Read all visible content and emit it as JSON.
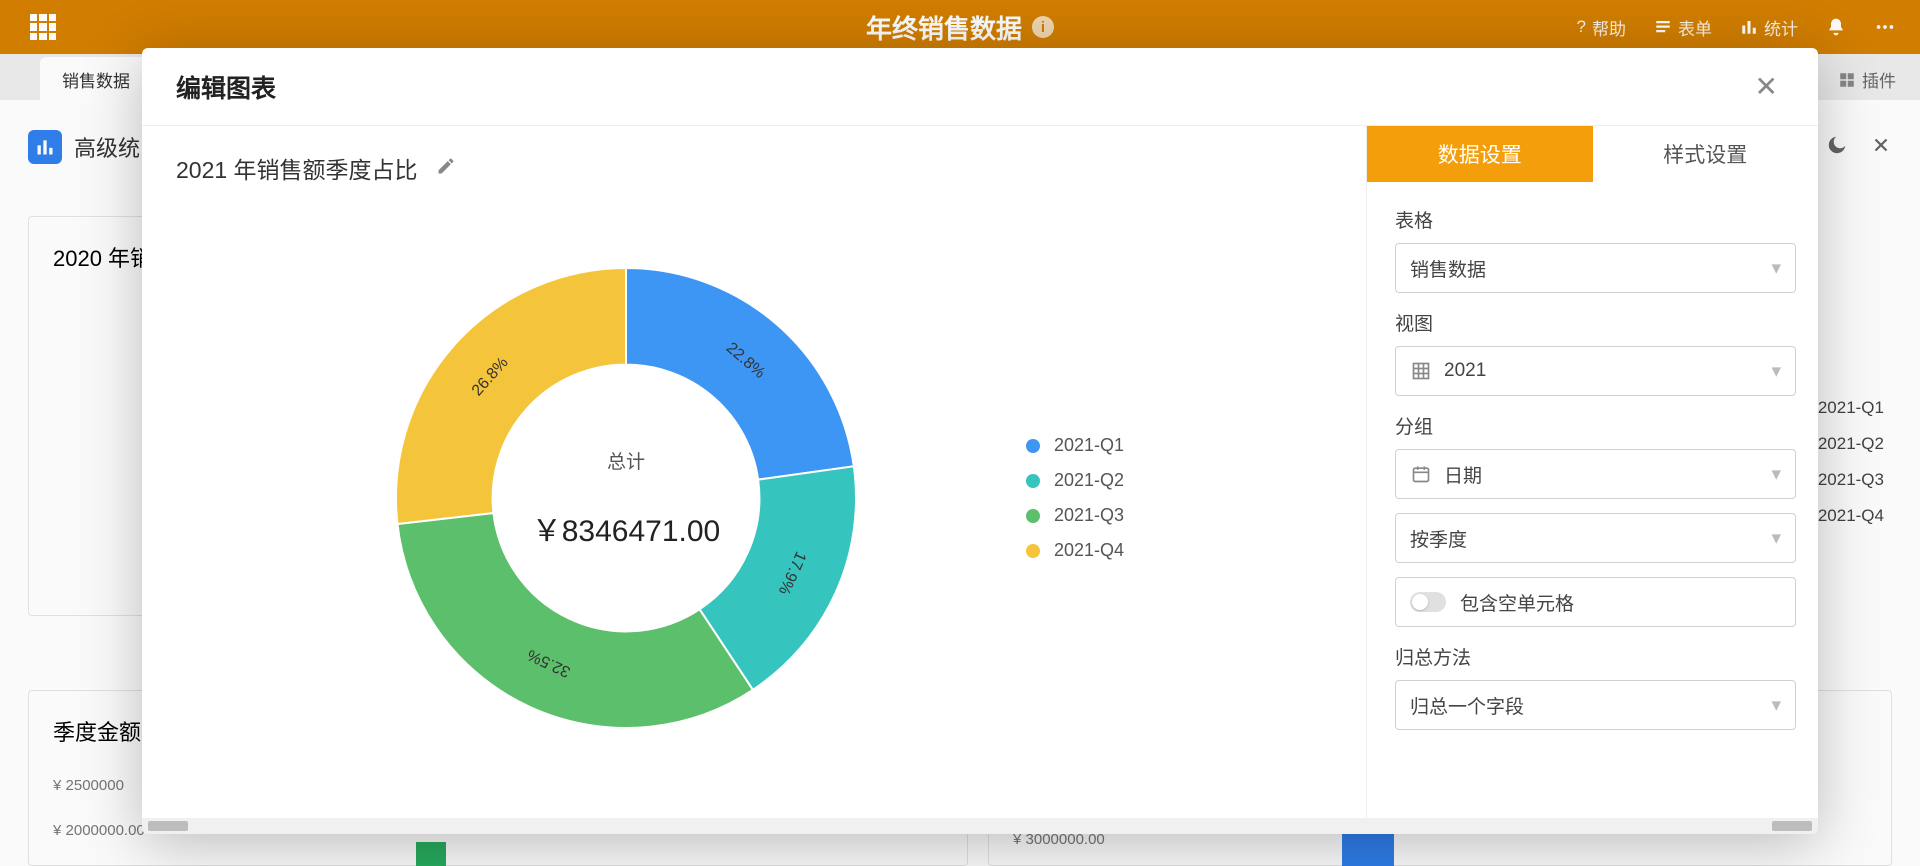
{
  "app": {
    "title": "年终销售数据",
    "help_label": "帮助",
    "forms_label": "表单",
    "stats_label": "统计",
    "plugins_label": "插件",
    "sheet_tab": "销售数据",
    "adv_stats": "高级统",
    "bg_card_2020": "2020 年销",
    "bg_card_quarter": "季度金额",
    "bg_right_rows": [
      "2021-Q1",
      "2021-Q2",
      "2021-Q3",
      "2021-Q4"
    ],
    "bg_y_left": [
      "¥ 2500000",
      "¥ 2000000.00"
    ],
    "bg_y_right": "¥ 3000000.00"
  },
  "modal": {
    "title": "编辑图表",
    "chart_title": "2021 年销售额季度占比",
    "center_label": "总计",
    "center_value": "￥8346471.00",
    "donut": {
      "type": "donut",
      "inner_ratio": 0.58,
      "background_color": "#ffffff",
      "label_fontsize": 16,
      "label_color": "#333333",
      "slices": [
        {
          "name": "2021-Q1",
          "percent": 22.8,
          "color": "#3e96f4"
        },
        {
          "name": "2021-Q2",
          "percent": 17.9,
          "color": "#35c4be"
        },
        {
          "name": "2021-Q3",
          "percent": 32.5,
          "color": "#5bbf6b"
        },
        {
          "name": "2021-Q4",
          "percent": 26.8,
          "color": "#f4c53a"
        }
      ]
    },
    "settings": {
      "tab_data": "数据设置",
      "tab_style": "样式设置",
      "section_table": "表格",
      "sel_table": "销售数据",
      "section_view": "视图",
      "sel_view": "2021",
      "section_group": "分组",
      "sel_group_field": "日期",
      "sel_group_gran": "按季度",
      "toggle_empty": "包含空单元格",
      "section_aggregate": "归总方法",
      "sel_aggregate": "归总一个字段"
    }
  }
}
